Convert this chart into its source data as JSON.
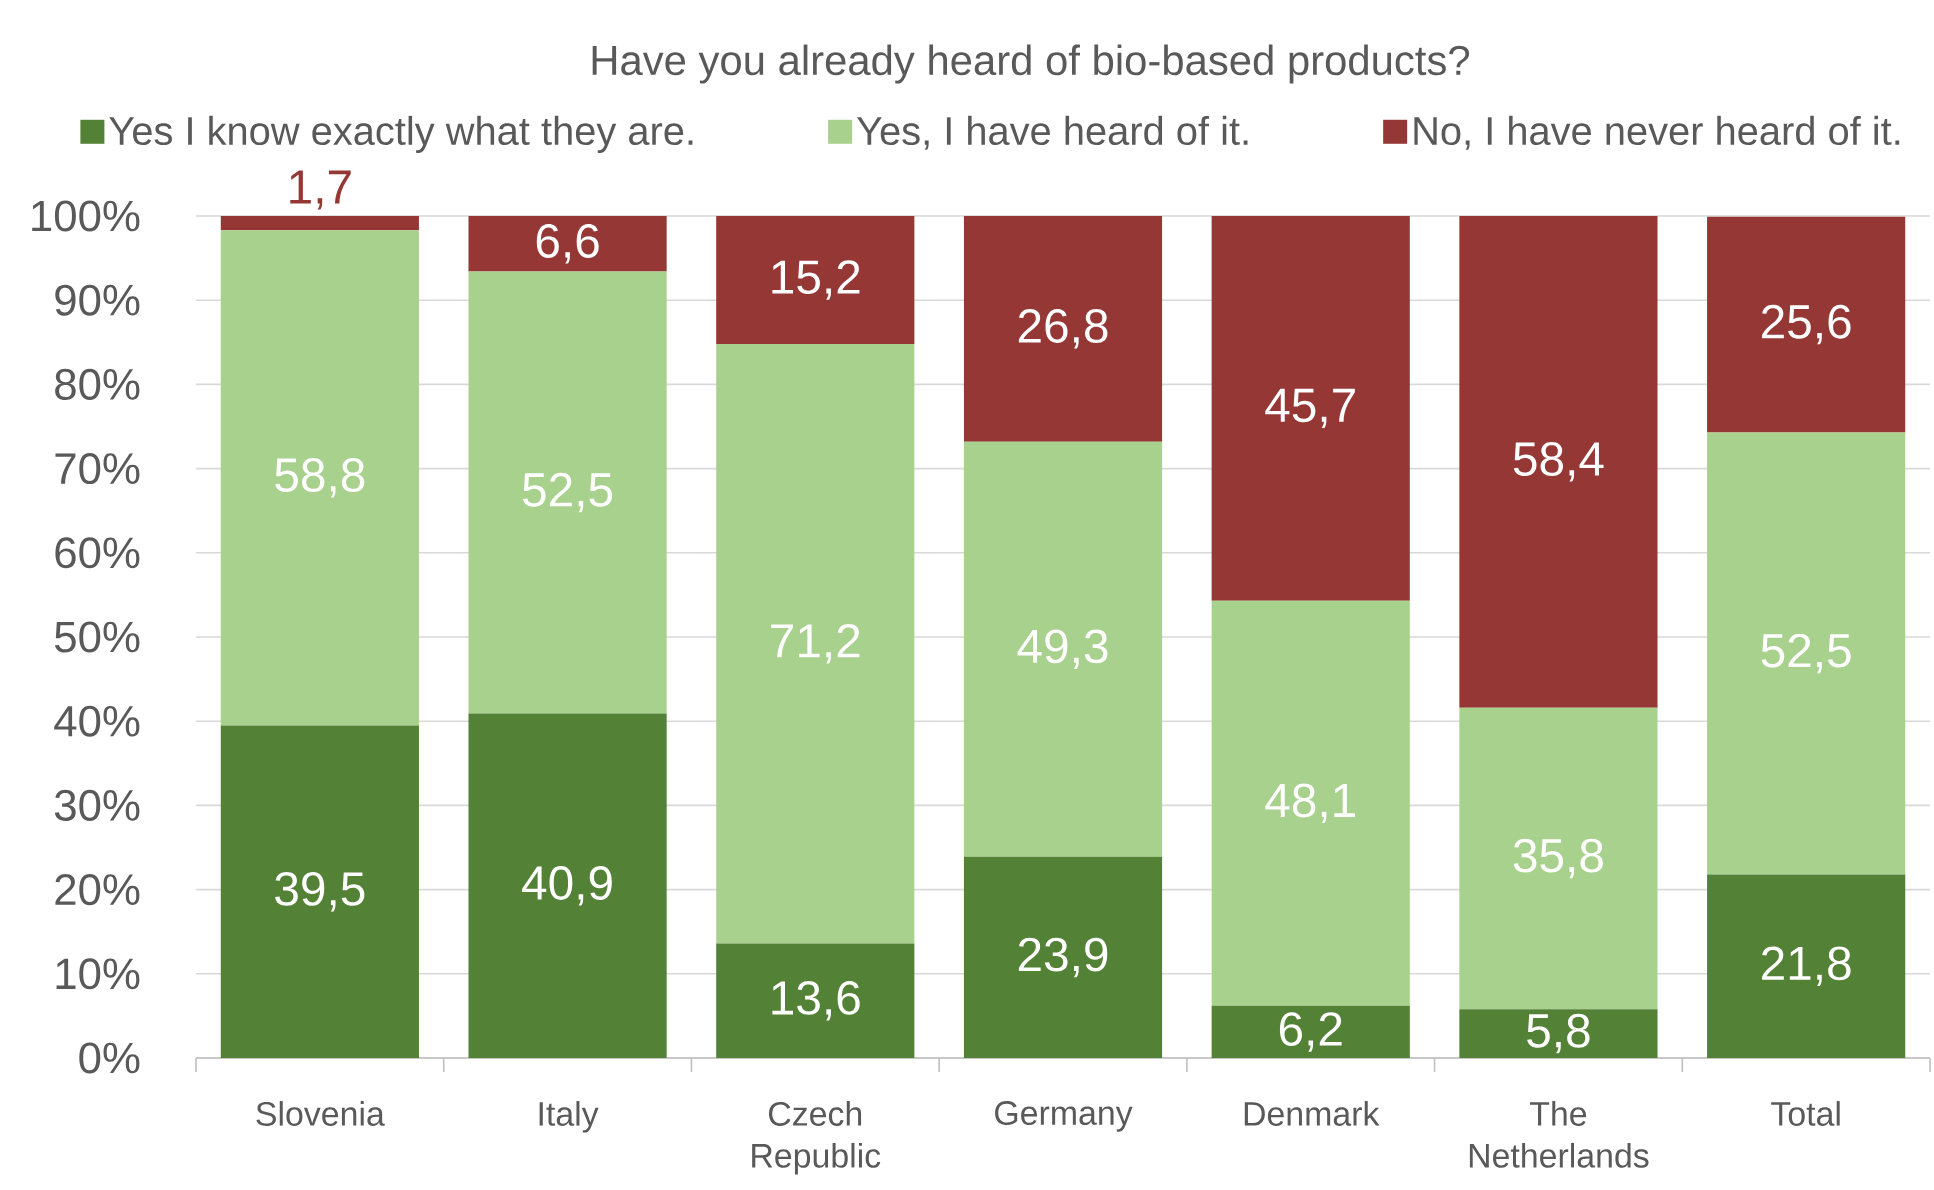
{
  "chart_data": {
    "type": "bar",
    "title": "Have you already heard of bio-based products?",
    "categories": [
      "Slovenia",
      "Italy",
      "Czech Republic",
      "Germany",
      "Denmark",
      "The Netherlands",
      "Total"
    ],
    "stacked": true,
    "series": [
      {
        "name": "Yes I know exactly what they are.",
        "color": "#538135",
        "values": [
          39.5,
          40.9,
          13.6,
          23.9,
          6.2,
          5.8,
          21.8
        ],
        "value_labels": [
          "39,5",
          "40,9",
          "13,6",
          "23,9",
          "6,2",
          "5,8",
          "21,8"
        ]
      },
      {
        "name": "Yes, I have heard of it.",
        "color": "#a9d18e",
        "values": [
          58.8,
          52.5,
          71.2,
          49.3,
          48.1,
          35.8,
          52.5
        ],
        "value_labels": [
          "58,8",
          "52,5",
          "71,2",
          "49,3",
          "48,1",
          "35,8",
          "52,5"
        ]
      },
      {
        "name": "No, I have never heard of it.",
        "color": "#953735",
        "values": [
          1.7,
          6.6,
          15.2,
          26.8,
          45.7,
          58.4,
          25.6
        ],
        "value_labels": [
          "1,7",
          "6,6",
          "15,2",
          "26,8",
          "45,7",
          "58,4",
          "25,6"
        ]
      }
    ],
    "ylim": [
      0,
      100
    ],
    "yticks": [
      {
        "value": 0,
        "label": "0%"
      },
      {
        "value": 10,
        "label": "10%"
      },
      {
        "value": 20,
        "label": "20%"
      },
      {
        "value": 30,
        "label": "30%"
      },
      {
        "value": 40,
        "label": "40%"
      },
      {
        "value": 50,
        "label": "50%"
      },
      {
        "value": 60,
        "label": "60%"
      },
      {
        "value": 70,
        "label": "70%"
      },
      {
        "value": 80,
        "label": "80%"
      },
      {
        "value": 90,
        "label": "90%"
      },
      {
        "value": 100,
        "label": "100%"
      }
    ],
    "grid": "y",
    "legend": "top"
  }
}
